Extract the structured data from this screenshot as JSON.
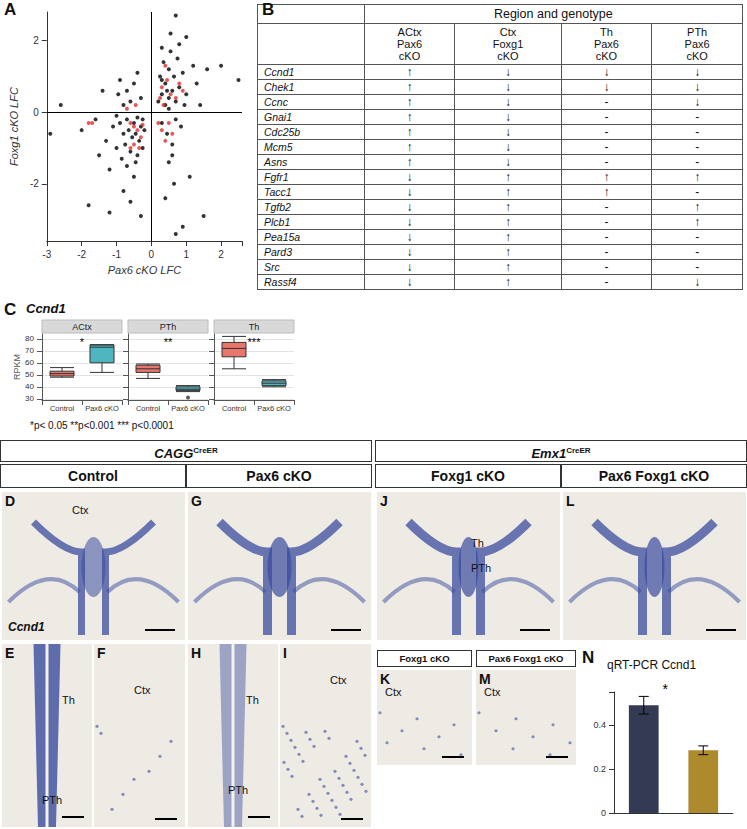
{
  "panel_letters": {
    "A": "A",
    "B": "B",
    "C": "C",
    "D": "D",
    "E": "E",
    "F": "F",
    "G": "G",
    "H": "H",
    "I": "I",
    "J": "J",
    "K": "K",
    "L": "L",
    "M": "M",
    "N": "N"
  },
  "chart_data": [
    {
      "type": "scatter",
      "xlabel": "Pax6 cKO LFC",
      "ylabel": "Foxg1 cKO LFC",
      "xlim": [
        -3,
        2.6
      ],
      "ylim": [
        -3.6,
        2.8
      ],
      "xticks": [
        -3,
        -2,
        -1,
        0,
        1,
        2
      ],
      "yticks": [
        -2,
        0,
        2
      ],
      "grid": false,
      "reference_lines": {
        "x": 0,
        "y": 0
      },
      "series": [
        {
          "color": "#000000",
          "points": [
            [
              -2.6,
              0.2
            ],
            [
              -2.9,
              -0.6
            ],
            [
              -2.0,
              -0.5
            ],
            [
              -1.8,
              -2.6
            ],
            [
              -1.6,
              -0.2
            ],
            [
              -1.5,
              -1.2
            ],
            [
              -1.3,
              -0.8
            ],
            [
              -1.2,
              -1.6
            ],
            [
              -1.1,
              -0.4
            ],
            [
              -1.0,
              -1.0
            ],
            [
              -0.95,
              0.5
            ],
            [
              -0.9,
              -0.3
            ],
            [
              -0.85,
              -1.3
            ],
            [
              -0.8,
              -0.6
            ],
            [
              -0.8,
              -2.2
            ],
            [
              -0.75,
              -0.9
            ],
            [
              -0.7,
              -0.2
            ],
            [
              -0.7,
              -1.5
            ],
            [
              -0.65,
              -0.5
            ],
            [
              -0.6,
              -1.1
            ],
            [
              -0.6,
              0.3
            ],
            [
              -0.55,
              -0.7
            ],
            [
              -0.5,
              -0.3
            ],
            [
              -0.5,
              -1.8
            ],
            [
              -0.45,
              -0.6
            ],
            [
              -0.4,
              -1.2
            ],
            [
              -0.4,
              -0.15
            ],
            [
              -0.35,
              -0.8
            ],
            [
              -0.3,
              -0.4
            ],
            [
              -0.3,
              -2.9
            ],
            [
              -0.25,
              -1.0
            ],
            [
              -0.2,
              -0.5
            ],
            [
              -0.9,
              0.9
            ],
            [
              -0.7,
              0.6
            ],
            [
              -0.5,
              0.8
            ],
            [
              -0.4,
              1.1
            ],
            [
              -0.3,
              0.4
            ],
            [
              -1.2,
              -2.8
            ],
            [
              -0.6,
              -2.5
            ],
            [
              -0.45,
              -1.4
            ],
            [
              -1.0,
              -0.1
            ],
            [
              -0.8,
              0.2
            ],
            [
              -0.25,
              -0.2
            ],
            [
              -1.4,
              0.6
            ],
            [
              0.2,
              0.3
            ],
            [
              0.25,
              1.0
            ],
            [
              0.3,
              0.5
            ],
            [
              0.3,
              -0.3
            ],
            [
              0.35,
              1.4
            ],
            [
              0.4,
              0.2
            ],
            [
              0.4,
              0.8
            ],
            [
              0.45,
              -0.6
            ],
            [
              0.5,
              1.2
            ],
            [
              0.5,
              0.4
            ],
            [
              0.55,
              1.7
            ],
            [
              0.6,
              0.6
            ],
            [
              0.6,
              -0.9
            ],
            [
              0.65,
              1.0
            ],
            [
              0.7,
              0.3
            ],
            [
              0.7,
              2.7
            ],
            [
              0.75,
              1.5
            ],
            [
              0.8,
              0.7
            ],
            [
              0.85,
              -0.4
            ],
            [
              0.9,
              1.1
            ],
            [
              1.0,
              0.5
            ],
            [
              1.1,
              -1.8
            ],
            [
              1.2,
              1.3
            ],
            [
              1.4,
              0.2
            ],
            [
              1.6,
              1.2
            ],
            [
              2.0,
              1.3
            ],
            [
              2.5,
              0.9
            ],
            [
              0.3,
              1.8
            ],
            [
              0.5,
              -1.4
            ],
            [
              0.7,
              -3.4
            ],
            [
              0.9,
              -3.2
            ],
            [
              0.4,
              -2.4
            ],
            [
              0.6,
              -1.2
            ],
            [
              0.8,
              1.9
            ],
            [
              0.3,
              0.9
            ],
            [
              0.5,
              0.1
            ],
            [
              0.7,
              -0.2
            ],
            [
              1.0,
              2.1
            ],
            [
              0.45,
              0.6
            ],
            [
              0.65,
              -2.0
            ],
            [
              1.5,
              -2.9
            ],
            [
              1.3,
              0.8
            ],
            [
              0.95,
              0.2
            ],
            [
              0.55,
              2.2
            ]
          ]
        },
        {
          "color": "#e0312f",
          "points": [
            [
              -1.8,
              -0.3
            ],
            [
              -1.7,
              -0.3
            ],
            [
              -0.6,
              -0.3
            ],
            [
              -0.5,
              -0.9
            ],
            [
              -0.45,
              0.2
            ],
            [
              -0.4,
              -0.5
            ],
            [
              -0.35,
              -1.0
            ],
            [
              -0.3,
              -0.7
            ],
            [
              -0.25,
              -0.35
            ],
            [
              -0.6,
              -1.0
            ],
            [
              -0.5,
              -0.4
            ],
            [
              -0.7,
              0.1
            ],
            [
              0.25,
              0.4
            ],
            [
              0.3,
              -0.5
            ],
            [
              0.35,
              0.2
            ],
            [
              0.4,
              -0.8
            ],
            [
              0.45,
              0.9
            ],
            [
              0.5,
              -0.3
            ],
            [
              0.55,
              0.5
            ],
            [
              0.6,
              -0.6
            ],
            [
              0.7,
              0.4
            ],
            [
              0.8,
              0.8
            ],
            [
              0.3,
              0.7
            ],
            [
              0.4,
              1.3
            ],
            [
              0.9,
              0.6
            ],
            [
              0.2,
              -0.3
            ]
          ]
        }
      ]
    },
    {
      "type": "boxplot",
      "title": "Ccnd1",
      "ylabel": "RPKM",
      "ylim": [
        29,
        84
      ],
      "yticks": [
        30,
        40,
        50,
        60,
        70,
        80
      ],
      "grid": true,
      "tick_labels": true,
      "categories": [
        "Control",
        "Pax6 cKO"
      ],
      "colors": [
        "#e8766c",
        "#4db6c0"
      ],
      "facets": [
        {
          "name": "ACtx",
          "annotation": "*",
          "boxes": [
            [
              48,
              49,
              51,
              53,
              56
            ],
            [
              52,
              60,
              73,
              75,
              75
            ]
          ],
          "outliers": [
            [],
            []
          ]
        },
        {
          "name": "PTh",
          "annotation": "**",
          "boxes": [
            [
              47,
              52,
              55,
              58,
              59
            ],
            [
              36,
              37,
              38,
              40,
              41
            ]
          ],
          "outliers": [
            [],
            [
              31
            ]
          ]
        },
        {
          "name": "Th",
          "annotation": "***",
          "boxes": [
            [
              55,
              65,
              72,
              77,
              82
            ],
            [
              40,
              41,
              43,
              45,
              46
            ]
          ],
          "outliers": [
            [],
            []
          ]
        }
      ],
      "footnote": "*p< 0.05   **p<0.001   *** p<0.0001"
    },
    {
      "type": "bar",
      "title": "qRT-PCR Ccnd1",
      "categories": [
        null,
        null
      ],
      "values": [
        0.49,
        0.285
      ],
      "errors": [
        0.04,
        0.02
      ],
      "colors": [
        "#343a54",
        "#ad8a2c"
      ],
      "ylim": [
        0,
        0.55
      ],
      "yticks": [
        0,
        0.2,
        0.4
      ],
      "grid": false,
      "tick_labels": "y",
      "annotation": "*"
    }
  ],
  "table": {
    "header": "Region and genotype",
    "columns": [
      [
        "ACtx",
        "Pax6",
        "cKO"
      ],
      [
        "Ctx",
        "Foxg1",
        "cKO"
      ],
      [
        "Th",
        "Pax6",
        "cKO"
      ],
      [
        "PTh",
        "Pax6",
        "cKO"
      ]
    ],
    "rows": [
      [
        "Ccnd1",
        "↑",
        "↓",
        "↓",
        "↓"
      ],
      [
        "Chek1",
        "↑",
        "↓",
        "↓",
        "↓"
      ],
      [
        "Ccnc",
        "↑",
        "↓",
        "-",
        "↓"
      ],
      [
        "Gnai1",
        "↑",
        "↓",
        "-",
        "-"
      ],
      [
        "Cdc25b",
        "↑",
        "↓",
        "-",
        "-"
      ],
      [
        "Mcm5",
        "↑",
        "↓",
        "-",
        "-"
      ],
      [
        "Asns",
        "↑",
        "↓",
        "-",
        "-"
      ],
      [
        "Fgfr1",
        "↓",
        "↑",
        "↑",
        "↑"
      ],
      [
        "Tacc1",
        "↓",
        "↑",
        "↑",
        "-"
      ],
      [
        "Tgfb2",
        "↓",
        "↑",
        "-",
        "↑"
      ],
      [
        "Plcb1",
        "↓",
        "↑",
        "-",
        "↑"
      ],
      [
        "Pea15a",
        "↓",
        "↑",
        "-",
        "-"
      ],
      [
        "Pard3",
        "↓",
        "↑",
        "-",
        "-"
      ],
      [
        "Src",
        "↓",
        "↑",
        "-",
        "-"
      ],
      [
        "Rassf4",
        "↓",
        "↑",
        "-",
        "↓"
      ]
    ]
  },
  "images": {
    "groups": [
      {
        "text": "CAGG",
        "superscript": "CreER",
        "columns": [
          "Control",
          "Pax6 cKO"
        ]
      },
      {
        "text": "Emx1",
        "superscript": "CreER",
        "columns": [
          "Foxg1 cKO",
          "Pax6 Foxg1 cKO"
        ]
      }
    ],
    "tiles": [
      {
        "letter": "D",
        "labels": [
          "Ctx"
        ],
        "gene_label": "Ccnd1"
      },
      {
        "letter": "E",
        "labels": [
          "Th",
          "PTh"
        ]
      },
      {
        "letter": "F",
        "labels": [
          "Ctx"
        ]
      },
      {
        "letter": "G",
        "labels": []
      },
      {
        "letter": "H",
        "labels": [
          "Th",
          "PTh"
        ]
      },
      {
        "letter": "I",
        "labels": [
          "Ctx"
        ]
      },
      {
        "letter": "J",
        "labels": [
          "Th",
          "PTh"
        ]
      },
      {
        "letter": "K",
        "labels": [
          "Ctx"
        ],
        "header": "Foxg1 cKO"
      },
      {
        "letter": "L",
        "labels": []
      },
      {
        "letter": "M",
        "labels": [
          "Ctx"
        ],
        "header": "Pax6 Foxg1 cKO"
      }
    ]
  }
}
